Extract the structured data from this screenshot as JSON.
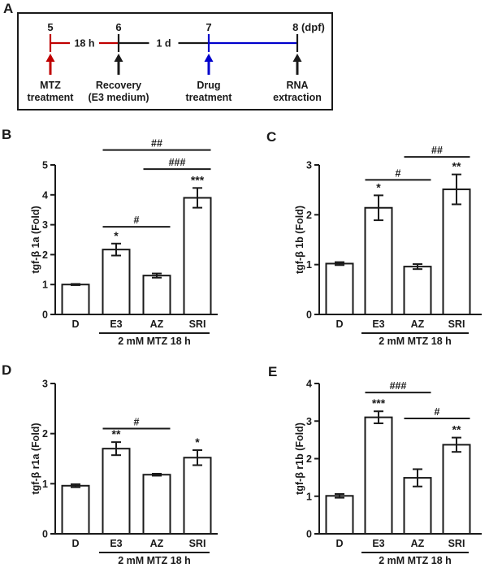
{
  "figure": {
    "background": "#ffffff",
    "ink_color": "#1a1a1a",
    "red": "#c00000",
    "blue": "#0000cc",
    "bar_fill": "#ffffff"
  },
  "timeline": {
    "panel_label": "A",
    "points": [
      {
        "day": "5",
        "color": "#c00000",
        "event_lines": [
          "MTZ",
          "treatment"
        ]
      },
      {
        "day": "6",
        "color": "#1a1a1a",
        "event_lines": [
          "Recovery",
          "(E3 medium)"
        ]
      },
      {
        "day": "7",
        "color": "#0000cc",
        "event_lines": [
          "Drug",
          "treatment"
        ]
      },
      {
        "day": "8 (dpf)",
        "color": "#1a1a1a",
        "event_lines": [
          "RNA",
          "extraction"
        ]
      }
    ],
    "intervals": [
      {
        "label": "18 h",
        "color": "#c00000"
      },
      {
        "label": "1 d",
        "color": "#1a1a1a"
      },
      {
        "label": "",
        "color": "#0000cc"
      }
    ]
  },
  "chart_data": [
    {
      "type": "bar",
      "panel_label": "B",
      "ylabel": "tgf-β 1a (Fold)",
      "xlabel": "",
      "ylim": [
        0,
        5
      ],
      "yticks": [
        0,
        1,
        2,
        3,
        4,
        5
      ],
      "grid": false,
      "categories": [
        "D",
        "E3",
        "AZ",
        "SRI"
      ],
      "values": [
        1.0,
        2.17,
        1.3,
        3.9
      ],
      "errors": [
        0.02,
        0.2,
        0.07,
        0.33
      ],
      "significance": [
        "",
        "*",
        "",
        "***"
      ],
      "comparisons": [
        {
          "from": 1,
          "to": 2,
          "label": "#",
          "level": 2.93
        },
        {
          "from": 2,
          "to": 3,
          "label": "###",
          "level": 4.86
        },
        {
          "from": 1,
          "to": 3,
          "label": "##",
          "level": 5.5
        }
      ],
      "group": {
        "label": "2 mM MTZ 18 h",
        "from": 1,
        "to": 3
      }
    },
    {
      "type": "bar",
      "panel_label": "C",
      "ylabel": "tgf-β 1b (Fold)",
      "xlabel": "",
      "ylim": [
        0,
        3
      ],
      "yticks": [
        0,
        1,
        2,
        3
      ],
      "grid": false,
      "categories": [
        "D",
        "E3",
        "AZ",
        "SRI"
      ],
      "values": [
        1.02,
        2.14,
        0.96,
        2.51
      ],
      "errors": [
        0.03,
        0.25,
        0.05,
        0.3
      ],
      "significance": [
        "",
        "*",
        "",
        "**"
      ],
      "comparisons": [
        {
          "from": 1,
          "to": 2,
          "label": "#",
          "level": 2.7
        },
        {
          "from": 2,
          "to": 3,
          "label": "##",
          "level": 3.16
        }
      ],
      "group": {
        "label": "2 mM MTZ 18 h",
        "from": 1,
        "to": 3
      }
    },
    {
      "type": "bar",
      "panel_label": "D",
      "ylabel": "tgf-β r1a (Fold)",
      "xlabel": "",
      "ylim": [
        0,
        3
      ],
      "yticks": [
        0,
        1,
        2,
        3
      ],
      "grid": false,
      "categories": [
        "D",
        "E3",
        "AZ",
        "SRI"
      ],
      "values": [
        0.96,
        1.7,
        1.18,
        1.52
      ],
      "errors": [
        0.03,
        0.13,
        0.02,
        0.15
      ],
      "significance": [
        "",
        "**",
        "",
        "*"
      ],
      "comparisons": [
        {
          "from": 1,
          "to": 2,
          "label": "#",
          "level": 2.1
        }
      ],
      "group": {
        "label": "2 mM MTZ 18 h",
        "from": 1,
        "to": 3
      }
    },
    {
      "type": "bar",
      "panel_label": "E",
      "ylabel": "tgf-β r1b (Fold)",
      "xlabel": "",
      "ylim": [
        0,
        4
      ],
      "yticks": [
        0,
        1,
        2,
        3,
        4
      ],
      "grid": false,
      "categories": [
        "D",
        "E3",
        "AZ",
        "SRI"
      ],
      "values": [
        1.01,
        3.1,
        1.49,
        2.37
      ],
      "errors": [
        0.05,
        0.16,
        0.23,
        0.19
      ],
      "significance": [
        "",
        "***",
        "",
        "**"
      ],
      "comparisons": [
        {
          "from": 1,
          "to": 2,
          "label": "###",
          "level": 3.76
        },
        {
          "from": 2,
          "to": 3,
          "label": "#",
          "level": 3.07
        }
      ],
      "group": {
        "label": "2 mM MTZ 18 h",
        "from": 1,
        "to": 3
      }
    }
  ]
}
